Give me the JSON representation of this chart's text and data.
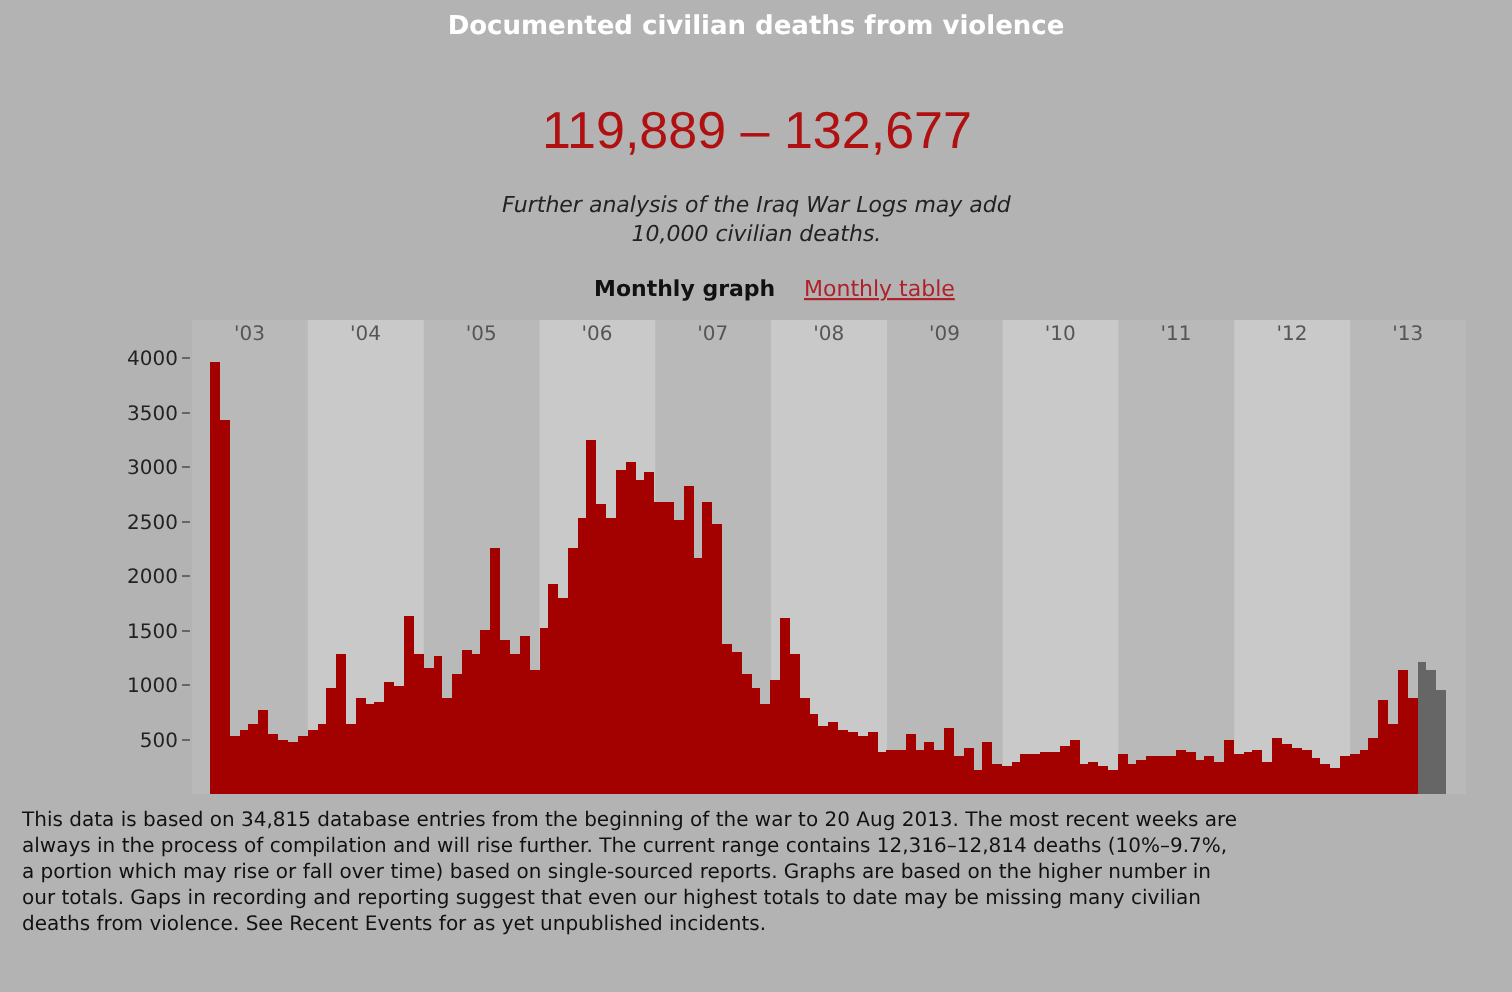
{
  "chart_data": {
    "type": "bar",
    "title": "Documented civilian deaths from violence",
    "subtitle": "119,889 – 132,677",
    "annotations": [
      "Further analysis of the Iraq War Logs may add 10,000 civilian deaths.",
      "Monthly graph",
      "Monthly table",
      "This data is based on 34,815 database entries from the beginning of the war to 20 Aug 2013. The most recent weeks are always in the process of compilation and will rise further. The current range contains 12,316–12,814 deaths (10%–9.7%, a portion which may rise or fall over time) based on single-sourced reports. Graphs are based on the higher number in our totals. Gaps in recording and reporting suggest that even our highest totals to date may be missing many civilian deaths from violence. See Recent Events for as yet unpublished incidents."
    ],
    "x": [
      "2003-03",
      "2003-04",
      "2003-05",
      "2003-06",
      "2003-07",
      "2003-08",
      "2003-09",
      "2003-10",
      "2003-11",
      "2003-12",
      "2004-01",
      "2004-02",
      "2004-03",
      "2004-04",
      "2004-05",
      "2004-06",
      "2004-07",
      "2004-08",
      "2004-09",
      "2004-10",
      "2004-11",
      "2004-12",
      "2005-01",
      "2005-02",
      "2005-03",
      "2005-04",
      "2005-05",
      "2005-06",
      "2005-07",
      "2005-08",
      "2005-09",
      "2005-10",
      "2005-11",
      "2005-12",
      "2006-01",
      "2006-02",
      "2006-03",
      "2006-04",
      "2006-05",
      "2006-06",
      "2006-07",
      "2006-08",
      "2006-09",
      "2006-10",
      "2006-11",
      "2006-12",
      "2007-01",
      "2007-02",
      "2007-03",
      "2007-04",
      "2007-05",
      "2007-06",
      "2007-07",
      "2007-08",
      "2007-09",
      "2007-10",
      "2007-11",
      "2007-12",
      "2008-01",
      "2008-02",
      "2008-03",
      "2008-04",
      "2008-05",
      "2008-06",
      "2008-07",
      "2008-08",
      "2008-09",
      "2008-10",
      "2008-11",
      "2008-12",
      "2009-01",
      "2009-02",
      "2009-03",
      "2009-04",
      "2009-05",
      "2009-06",
      "2009-07",
      "2009-08",
      "2009-09",
      "2009-10",
      "2009-11",
      "2009-12",
      "2010-01",
      "2010-02",
      "2010-03",
      "2010-04",
      "2010-05",
      "2010-06",
      "2010-07",
      "2010-08",
      "2010-09",
      "2010-10",
      "2010-11",
      "2010-12",
      "2011-01",
      "2011-02",
      "2011-03",
      "2011-04",
      "2011-05",
      "2011-06",
      "2011-07",
      "2011-08",
      "2011-09",
      "2011-10",
      "2011-11",
      "2011-12",
      "2012-01",
      "2012-02",
      "2012-03",
      "2012-04",
      "2012-05",
      "2012-06",
      "2012-07",
      "2012-08",
      "2012-09",
      "2012-10",
      "2012-11",
      "2012-12",
      "2013-01",
      "2013-02",
      "2013-03",
      "2013-04",
      "2013-05",
      "2013-06",
      "2013-07",
      "2013-08",
      "2013-09",
      "2013-10"
    ],
    "values": [
      3960,
      3430,
      530,
      590,
      640,
      780,
      550,
      500,
      470,
      530,
      590,
      650,
      970,
      1290,
      640,
      880,
      820,
      850,
      1020,
      1000,
      1640,
      1280,
      1160,
      1270,
      880,
      1100,
      1330,
      1290,
      1510,
      2250,
      1420,
      1290,
      1450,
      1130,
      1530,
      1930,
      1790,
      2250,
      2530,
      3250,
      2670,
      2530,
      2970,
      3050,
      2880,
      2950,
      2680,
      2680,
      2510,
      2820,
      2170,
      2680,
      2480,
      1370,
      1300,
      1110,
      980,
      830,
      1050,
      1620,
      1290,
      890,
      730,
      620,
      670,
      590,
      560,
      530,
      570,
      380,
      400,
      410,
      550,
      400,
      480,
      400,
      610,
      350,
      430,
      220,
      470,
      280,
      250,
      300,
      360,
      360,
      380,
      380,
      440,
      500,
      280,
      300,
      250,
      220,
      360,
      270,
      320,
      350,
      340,
      350,
      400,
      380,
      320,
      350,
      300,
      500,
      360,
      380,
      400,
      300,
      510,
      460,
      420,
      400,
      330,
      280,
      230,
      340,
      360,
      410,
      520,
      870,
      640,
      1130,
      890,
      1210,
      1130,
      960
    ],
    "colors": [
      "#a30000",
      "#a30000",
      "#a30000",
      "#a30000",
      "#a30000",
      "#a30000",
      "#a30000",
      "#a30000",
      "#a30000",
      "#a30000",
      "#a30000",
      "#a30000",
      "#a30000",
      "#a30000",
      "#a30000",
      "#a30000",
      "#a30000",
      "#a30000",
      "#a30000",
      "#a30000",
      "#a30000",
      "#a30000",
      "#a30000",
      "#a30000",
      "#a30000",
      "#a30000",
      "#a30000",
      "#a30000",
      "#a30000",
      "#a30000",
      "#a30000",
      "#a30000",
      "#a30000",
      "#a30000",
      "#a30000",
      "#a30000",
      "#a30000",
      "#a30000",
      "#a30000",
      "#a30000",
      "#a30000",
      "#a30000",
      "#a30000",
      "#a30000",
      "#a30000",
      "#a30000",
      "#a30000",
      "#a30000",
      "#a30000",
      "#a30000",
      "#a30000",
      "#a30000",
      "#a30000",
      "#a30000",
      "#a30000",
      "#a30000",
      "#a30000",
      "#a30000",
      "#a30000",
      "#a30000",
      "#a30000",
      "#a30000",
      "#a30000",
      "#a30000",
      "#a30000",
      "#a30000",
      "#a30000",
      "#a30000",
      "#a30000",
      "#a30000",
      "#a30000",
      "#a30000",
      "#a30000",
      "#a30000",
      "#a30000",
      "#a30000",
      "#a30000",
      "#a30000",
      "#a30000",
      "#a30000",
      "#a30000",
      "#a30000",
      "#a30000",
      "#a30000",
      "#a30000",
      "#a30000",
      "#a30000",
      "#a30000",
      "#a30000",
      "#a30000",
      "#a30000",
      "#a30000",
      "#a30000",
      "#a30000",
      "#a30000",
      "#a30000",
      "#a30000",
      "#a30000",
      "#a30000",
      "#a30000",
      "#a30000",
      "#a30000",
      "#a30000",
      "#a30000",
      "#a30000",
      "#a30000",
      "#a30000",
      "#a30000",
      "#a30000",
      "#a30000",
      "#a30000",
      "#a30000",
      "#a30000",
      "#a30000",
      "#a30000",
      "#a30000",
      "#a30000",
      "#a30000",
      "#a30000",
      "#a30000",
      "#a30000",
      "#a30000",
      "#a30000",
      "#a30000",
      "#a30000",
      "#666666",
      "#666666",
      "#666666"
    ],
    "xlim": [
      "2003-01-01",
      "2014-01-01"
    ],
    "xticks": [
      {
        "value": "2003-07-01",
        "label": "'03"
      },
      {
        "value": "2004-07-01",
        "label": "'04"
      },
      {
        "value": "2005-07-01",
        "label": "'05"
      },
      {
        "value": "2006-07-01",
        "label": "'06"
      },
      {
        "value": "2007-07-01",
        "label": "'07"
      },
      {
        "value": "2008-07-01",
        "label": "'08"
      },
      {
        "value": "2009-07-01",
        "label": "'09"
      },
      {
        "value": "2010-07-01",
        "label": "'10"
      },
      {
        "value": "2011-07-01",
        "label": "'11"
      },
      {
        "value": "2012-07-01",
        "label": "'12"
      },
      {
        "value": "2013-07-01",
        "label": "'13"
      }
    ],
    "ylim": [
      0,
      4350
    ],
    "yticks": [
      500,
      1000,
      1500,
      2000,
      2500,
      3000,
      3500,
      4000
    ],
    "bands": [
      {
        "axis": "x",
        "from": "2003-01-01",
        "to": "2004-01-01",
        "color": "#b9b9b9"
      },
      {
        "axis": "x",
        "from": "2005-01-01",
        "to": "2006-01-01",
        "color": "#b9b9b9"
      },
      {
        "axis": "x",
        "from": "2007-01-01",
        "to": "2008-01-01",
        "color": "#b9b9b9"
      },
      {
        "axis": "x",
        "from": "2009-01-01",
        "to": "2010-01-01",
        "color": "#b9b9b9"
      },
      {
        "axis": "x",
        "from": "2011-01-01",
        "to": "2012-01-01",
        "color": "#b9b9b9"
      },
      {
        "axis": "x",
        "from": "2013-01-01",
        "to": "2014-01-01",
        "color": "#b9b9b9"
      }
    ],
    "grid": false
  }
}
